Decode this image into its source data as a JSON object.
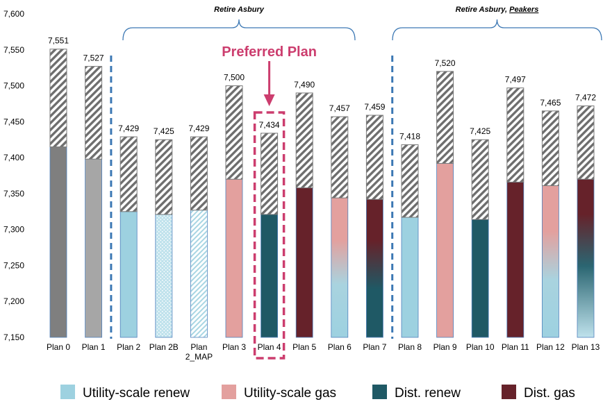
{
  "chart_data": {
    "type": "bar",
    "ylim": [
      7150,
      7600
    ],
    "yticks": [
      "7,150",
      "7,200",
      "7,250",
      "7,300",
      "7,350",
      "7,400",
      "7,450",
      "7,500",
      "7,550",
      "7,600"
    ],
    "categories": [
      "Plan 0",
      "Plan 1",
      "Plan 2",
      "Plan 2B",
      "Plan 2_MAP",
      "Plan 3",
      "Plan 4",
      "Plan 5",
      "Plan 6",
      "Plan 7",
      "Plan 8",
      "Plan 9",
      "Plan 10",
      "Plan 11",
      "Plan 12",
      "Plan 13"
    ],
    "category_labels": [
      [
        "Plan 0"
      ],
      [
        "Plan 1"
      ],
      [
        "Plan 2"
      ],
      [
        "Plan 2B"
      ],
      [
        "Plan",
        "2_MAP"
      ],
      [
        "Plan 3"
      ],
      [
        "Plan 4"
      ],
      [
        "Plan 5"
      ],
      [
        "Plan 6"
      ],
      [
        "Plan 7"
      ],
      [
        "Plan 8"
      ],
      [
        "Plan 9"
      ],
      [
        "Plan 10"
      ],
      [
        "Plan 11"
      ],
      [
        "Plan 12"
      ],
      [
        "Plan 13"
      ]
    ],
    "total_labels": [
      "7,551",
      "7,527",
      "7,429",
      "7,425",
      "7,429",
      "7,500",
      "7,434",
      "7,490",
      "7,457",
      "7,459",
      "7,418",
      "7,520",
      "7,425",
      "7,497",
      "7,465",
      "7,472"
    ],
    "totals": [
      7551,
      7527,
      7429,
      7425,
      7429,
      7500,
      7434,
      7490,
      7457,
      7459,
      7418,
      7520,
      7425,
      7497,
      7465,
      7472
    ],
    "base_values": [
      7415,
      7398,
      7325,
      7321,
      7327,
      7370,
      7321,
      7358,
      7344,
      7342,
      7317,
      7392,
      7314,
      7366,
      7361,
      7370
    ],
    "base_types": [
      "plan0",
      "plan1",
      "urenew",
      "urenew-dots",
      "urenew-stripes",
      "ugas",
      "drenew",
      "dgas",
      "ugas-urenew",
      "dgas-drenew",
      "urenew",
      "ugas",
      "drenew",
      "dgas",
      "ugas-urenew",
      "dgas-drenew"
    ],
    "series": [
      {
        "name": "Utility-scale renew",
        "color": "#9dd1e0"
      },
      {
        "name": "Utility-scale gas",
        "color": "#e3a09e"
      },
      {
        "name": "Dist. renew",
        "color": "#1f5965"
      },
      {
        "name": "Dist. gas",
        "color": "#66222a"
      }
    ],
    "groups": [
      {
        "label": "Retire Asbury",
        "from": 2,
        "to": 9
      },
      {
        "label_parts": [
          "Retire Asbury, ",
          "Peakers"
        ],
        "from": 10,
        "to": 15
      }
    ],
    "annotation": {
      "text": "Preferred Plan",
      "category": 6,
      "color": "#cc3d6e"
    },
    "colors": {
      "plan0": "#7f7f7f",
      "plan1": "#a6a6a6",
      "hatch": "#6e6e6e",
      "divider": "#3c78b4",
      "bar_outline": "#4f81bd",
      "brace": "#3c78b4"
    }
  }
}
